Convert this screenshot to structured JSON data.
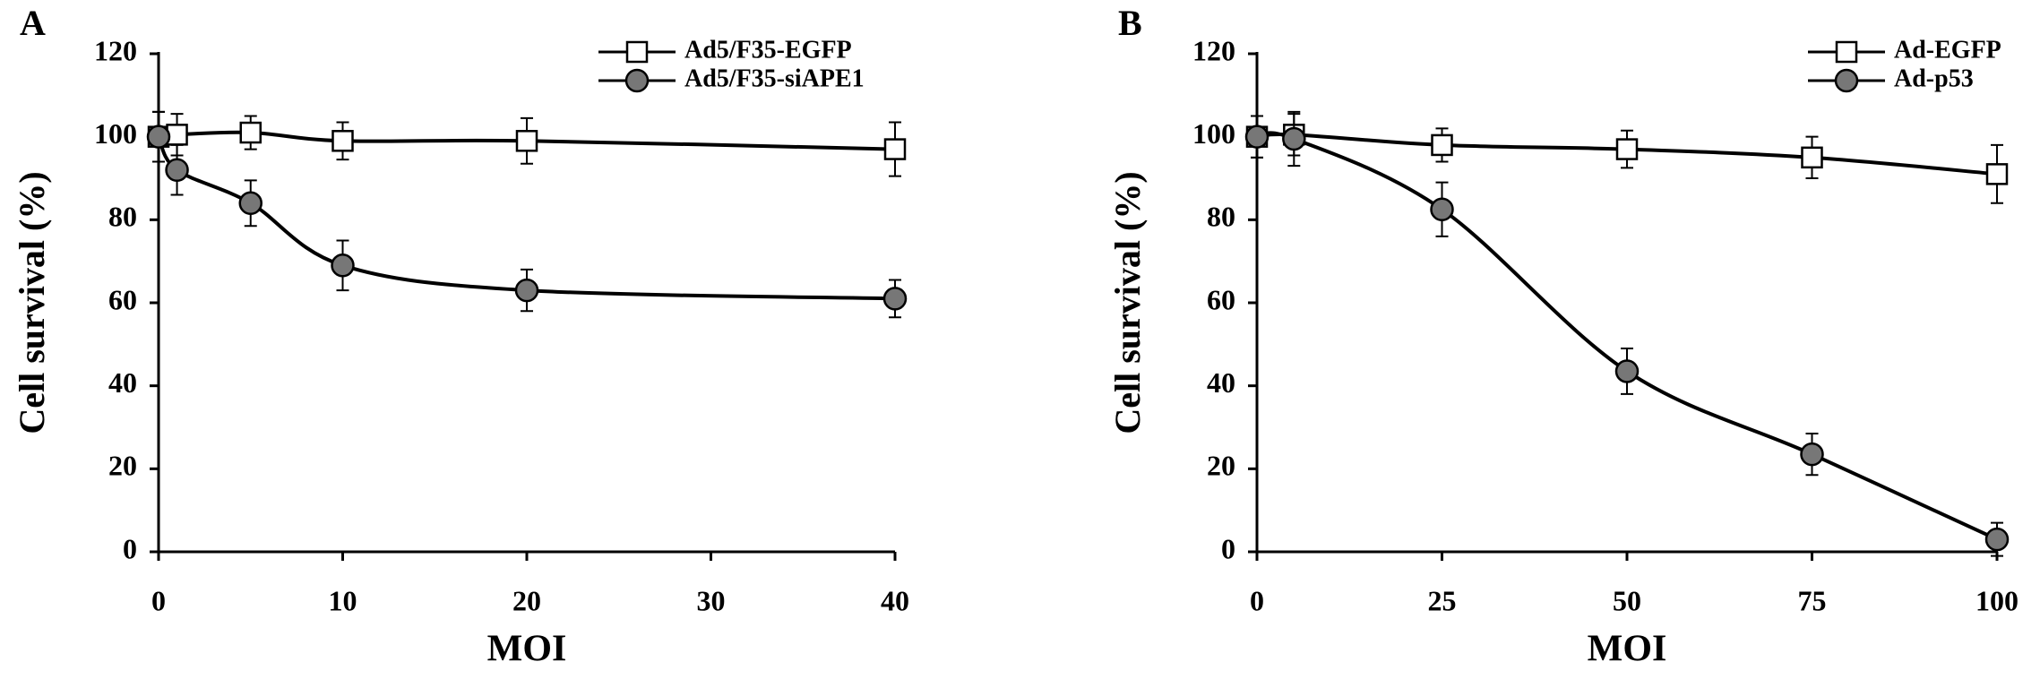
{
  "chart_data": [
    {
      "type": "line",
      "panel_label": "A",
      "xlabel": "MOI",
      "ylabel": "Cell survival (%)",
      "x": [
        0,
        1,
        5,
        10,
        20,
        40
      ],
      "series": [
        {
          "name": "Ad5/F35-EGFP",
          "color": "#ffffff",
          "marker": "square",
          "values": [
            100,
            100.5,
            101,
            99,
            99,
            97
          ],
          "errors": [
            6,
            5,
            4,
            4.5,
            5.5,
            6.5
          ]
        },
        {
          "name": "Ad5/F35-siAPE1",
          "color": "#777777",
          "marker": "circle",
          "values": [
            100,
            92,
            84,
            69,
            63,
            61
          ],
          "errors": [
            6,
            6,
            5.5,
            6,
            5,
            4.5
          ]
        }
      ],
      "xlim": [
        0,
        40
      ],
      "xticks": [
        0,
        10,
        20,
        30,
        40
      ],
      "ylim": [
        0,
        120
      ],
      "yticks": [
        0,
        20,
        40,
        60,
        80,
        100,
        120
      ],
      "grid": false,
      "legend": "upper right"
    },
    {
      "type": "line",
      "panel_label": "B",
      "xlabel": "MOI",
      "ylabel": "Cell survival (%)",
      "x": [
        0,
        5,
        25,
        50,
        75,
        100
      ],
      "series": [
        {
          "name": "Ad-EGFP",
          "color": "#ffffff",
          "marker": "square",
          "values": [
            100,
            100.5,
            98,
            97,
            95,
            91
          ],
          "errors": [
            5,
            5,
            4,
            4.5,
            5,
            7
          ]
        },
        {
          "name": "Ad-p53",
          "color": "#777777",
          "marker": "circle",
          "values": [
            100,
            99.5,
            82.5,
            43.5,
            23.5,
            3
          ],
          "errors": [
            5,
            6.5,
            6.5,
            5.5,
            5,
            4
          ]
        }
      ],
      "xlim": [
        0,
        100
      ],
      "xticks": [
        0,
        25,
        50,
        75,
        100
      ],
      "ylim": [
        0,
        120
      ],
      "yticks": [
        0,
        20,
        40,
        60,
        80,
        100,
        120
      ],
      "grid": false,
      "legend": "upper right"
    }
  ]
}
